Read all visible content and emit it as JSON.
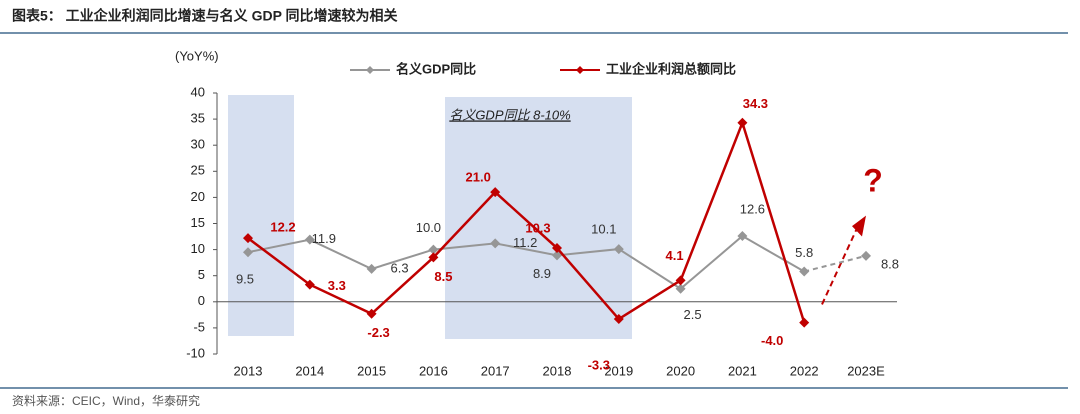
{
  "chart_data": {
    "type": "line",
    "figure_title": "图表5：  工业企业利润同比增速与名义 GDP 同比增速较为相关",
    "y_label": "(YoY%)",
    "categories": [
      "2013",
      "2014",
      "2015",
      "2016",
      "2017",
      "2018",
      "2019",
      "2020",
      "2021",
      "2022",
      "2023E"
    ],
    "series": [
      {
        "name": "名义GDP同比",
        "color": "#969696",
        "values": [
          9.5,
          11.9,
          6.3,
          10.0,
          11.2,
          8.9,
          10.1,
          2.5,
          12.6,
          5.8,
          8.8
        ],
        "value_labels": [
          "9.5",
          "11.9",
          "6.3",
          "10.0",
          "11.2",
          "8.9",
          "10.1",
          "2.5",
          "12.6",
          "5.8",
          "8.8"
        ]
      },
      {
        "name": "工业企业利润总额同比",
        "color": "#c00000",
        "values": [
          12.2,
          3.3,
          -2.3,
          8.5,
          21.0,
          10.3,
          -3.3,
          4.1,
          34.3,
          -4.0,
          null
        ],
        "value_labels": [
          "12.2",
          "3.3",
          "-2.3",
          "8.5",
          "21.0",
          "10.3",
          "-3.3",
          "4.1",
          "34.3",
          "-4.0",
          null
        ]
      }
    ],
    "ylim": [
      -10,
      40
    ],
    "yticks": [
      -10,
      -5,
      0,
      5,
      10,
      15,
      20,
      25,
      30,
      35,
      40
    ],
    "band_annotation": "名义GDP同比 8-10%",
    "question_mark": "?",
    "source": "资料来源：CEIC，Wind，华泰研究"
  }
}
